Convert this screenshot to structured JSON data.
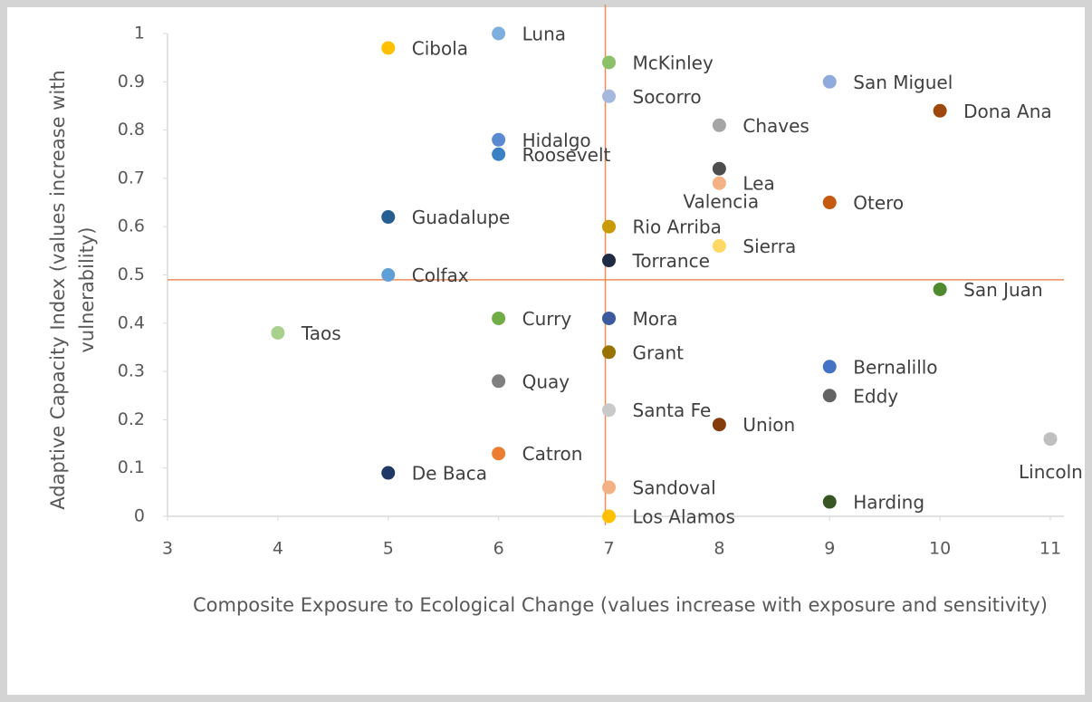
{
  "chart_data": {
    "type": "scatter",
    "x_label": "Composite Exposure to Ecological Change (values increase with exposure and sensitivity)",
    "y_label": "Adaptive Capacity Index (values increase with vulnerability)",
    "labels": [
      "Cibola",
      "Luna",
      "McKinley",
      "San Miguel",
      "Dona Ana",
      "Socorro",
      "Chaves",
      "Hidalgo",
      "Roosevelt",
      "Valencia",
      "Lea",
      "Otero",
      "Guadalupe",
      "Rio Arriba",
      "Sierra",
      "Torrance",
      "Colfax",
      "San Juan",
      "Curry",
      "Mora",
      "Taos",
      "Grant",
      "Bernalillo",
      "Quay",
      "Eddy",
      "Santa Fe",
      "Union",
      "Lincoln",
      "Catron",
      "De Baca",
      "Sandoval",
      "Harding",
      "Los Alamos"
    ],
    "x": [
      5,
      6,
      7,
      9,
      10,
      7,
      8,
      6,
      6,
      8,
      8,
      9,
      5,
      7,
      8,
      7,
      5,
      10,
      6,
      7,
      4,
      7,
      9,
      6,
      9,
      7,
      8,
      11,
      6,
      5,
      7,
      9,
      7
    ],
    "values": [
      0.97,
      1,
      0.94,
      0.9,
      0.84,
      0.87,
      0.81,
      0.78,
      0.75,
      0.72,
      0.69,
      0.65,
      0.62,
      0.6,
      0.56,
      0.53,
      0.5,
      0.47,
      0.41,
      0.41,
      0.38,
      0.34,
      0.31,
      0.28,
      0.25,
      0.22,
      0.19,
      0.16,
      0.13,
      0.09,
      0.06,
      0.03,
      0
    ],
    "colors": [
      "#ffc000",
      "#7cafdd",
      "#8cc168",
      "#8faadc",
      "#9e480e",
      "#a5b9de",
      "#a5a5a5",
      "#5b8ad0",
      "#3b7fc4",
      "#4d4d4d",
      "#f4b183",
      "#c55a11",
      "#255e91",
      "#c99a06",
      "#ffd966",
      "#1f2a44",
      "#5f9fd6",
      "#4f8a30",
      "#70ad47",
      "#3d5a9e",
      "#a9d18e",
      "#997300",
      "#4472c4",
      "#808080",
      "#636363",
      "#c9c9c9",
      "#843c0c",
      "#bfbfbf",
      "#ed7d31",
      "#203864",
      "#f4b183",
      "#375623",
      "#ffc000"
    ],
    "xlim": [
      3,
      11
    ],
    "ylim": [
      0,
      1
    ],
    "xticks": [
      3,
      4,
      5,
      6,
      7,
      8,
      9,
      10,
      11
    ],
    "yticks": [
      0,
      0.1,
      0.2,
      0.3,
      0.4,
      0.5,
      0.6,
      0.7,
      0.8,
      0.9,
      1
    ],
    "reference_lines": {
      "x": 7,
      "y": 0.49,
      "color": "#f08c5a"
    }
  }
}
